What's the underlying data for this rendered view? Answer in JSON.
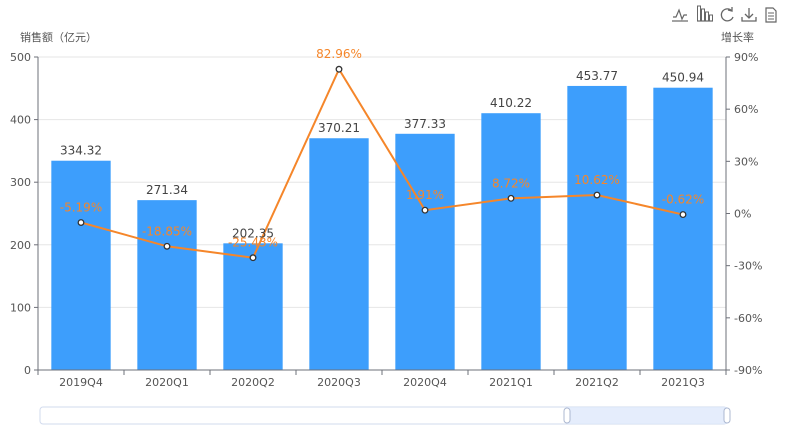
{
  "toolbox": {
    "items": [
      {
        "name": "line-chart-toggle-icon",
        "symbol": "line-icon"
      },
      {
        "name": "bar-chart-toggle-icon",
        "symbol": "bar-icon"
      },
      {
        "name": "restore-icon",
        "symbol": "refresh-icon"
      },
      {
        "name": "save-image-icon",
        "symbol": "download-icon"
      },
      {
        "name": "data-view-icon",
        "symbol": "document-icon"
      }
    ]
  },
  "chart_data": {
    "type": "bar",
    "categories": [
      "2019Q4",
      "2020Q1",
      "2020Q2",
      "2020Q3",
      "2020Q4",
      "2021Q1",
      "2021Q2",
      "2021Q3"
    ],
    "series": [
      {
        "name": "",
        "kind": "bar",
        "axis": "left",
        "color": "#3d9efc",
        "values": [
          334.32,
          271.34,
          202.35,
          370.21,
          377.33,
          410.22,
          453.77,
          450.94
        ],
        "labels": [
          "334.32",
          "271.34",
          "202.35",
          "370.21",
          "377.33",
          "410.22",
          "453.77",
          "450.94"
        ]
      },
      {
        "name": "",
        "kind": "line",
        "axis": "right",
        "color": "#f5862a",
        "values": [
          -5.19,
          -18.85,
          -25.43,
          82.96,
          1.91,
          8.72,
          10.62,
          -0.62
        ],
        "labels": [
          "-5.19%",
          "-18.85%",
          "-25.43%",
          "82.96%",
          "1.91%",
          "8.72%",
          "10.62%",
          "-0.62%"
        ]
      }
    ],
    "ylabel": "销售额（亿元）",
    "y2label": "增长率",
    "ylim": [
      0,
      500
    ],
    "y2lim": [
      -90,
      90
    ],
    "yticks": [
      "0",
      "100",
      "200",
      "300",
      "400",
      "500"
    ],
    "y2ticks": [
      "-90%",
      "-60%",
      "-30%",
      "0%",
      "30%",
      "60%",
      "90%"
    ],
    "grid": true,
    "datazoom": {
      "start_percent": 0,
      "end_percent": 100
    }
  }
}
